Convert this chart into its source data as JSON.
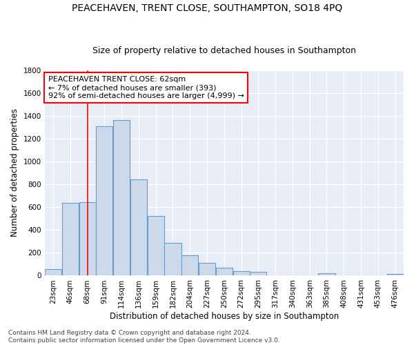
{
  "title1": "PEACEHAVEN, TRENT CLOSE, SOUTHAMPTON, SO18 4PQ",
  "title2": "Size of property relative to detached houses in Southampton",
  "xlabel": "Distribution of detached houses by size in Southampton",
  "ylabel": "Number of detached properties",
  "categories": [
    "23sqm",
    "46sqm",
    "68sqm",
    "91sqm",
    "114sqm",
    "136sqm",
    "159sqm",
    "182sqm",
    "204sqm",
    "227sqm",
    "250sqm",
    "272sqm",
    "295sqm",
    "317sqm",
    "340sqm",
    "363sqm",
    "385sqm",
    "408sqm",
    "431sqm",
    "453sqm",
    "476sqm"
  ],
  "values": [
    60,
    638,
    643,
    1307,
    1360,
    843,
    525,
    285,
    175,
    110,
    70,
    38,
    30,
    0,
    0,
    0,
    20,
    0,
    0,
    0,
    15
  ],
  "bar_color": "#ccd9ea",
  "bar_edge_color": "#6699cc",
  "background_color": "#e8edf5",
  "grid_color": "#ffffff",
  "annotation_text_line1": "PEACEHAVEN TRENT CLOSE: 62sqm",
  "annotation_text_line2": "← 7% of detached houses are smaller (393)",
  "annotation_text_line3": "92% of semi-detached houses are larger (4,999) →",
  "redline_index": 2,
  "ylim": [
    0,
    1800
  ],
  "yticks": [
    0,
    200,
    400,
    600,
    800,
    1000,
    1200,
    1400,
    1600,
    1800
  ],
  "footnote": "Contains HM Land Registry data © Crown copyright and database right 2024.\nContains public sector information licensed under the Open Government Licence v3.0.",
  "title1_fontsize": 10,
  "title2_fontsize": 9,
  "tick_fontsize": 7.5,
  "ylabel_fontsize": 8.5,
  "xlabel_fontsize": 8.5,
  "footnote_fontsize": 6.5,
  "annot_fontsize": 8
}
